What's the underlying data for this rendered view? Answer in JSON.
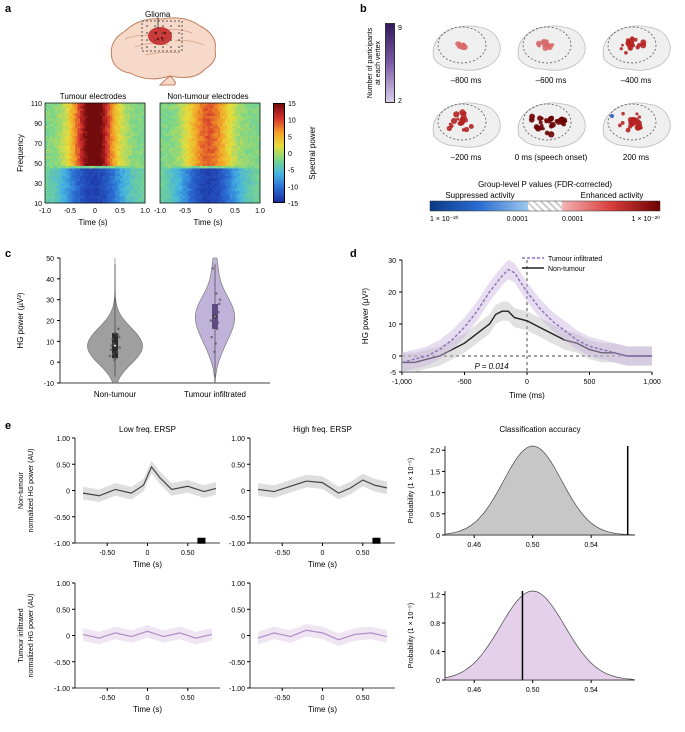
{
  "panel_a": {
    "label": "a",
    "brain_label": "Glioma",
    "left_title": "Tumour electrodes",
    "right_title": "Non-tumour electrodes",
    "x_label": "Time (s)",
    "y_label": "Frequency",
    "x_ticks": [
      "-1.0",
      "-0.5",
      "0",
      "0.5",
      "1.0"
    ],
    "y_ticks": [
      "10",
      "30",
      "50",
      "70",
      "90",
      "110"
    ],
    "cbar_label": "Spectral power",
    "cbar_ticks": [
      "-15",
      "-10",
      "-5",
      "0",
      "5",
      "10",
      "15"
    ]
  },
  "panel_b": {
    "label": "b",
    "vert_cbar_label": "Number of participants\nat each vertex",
    "vert_cbar_ticks": [
      "2",
      "9"
    ],
    "times": [
      "–800 ms",
      "–600 ms",
      "–400 ms",
      "–200 ms",
      "0 ms (speech onset)",
      "200 ms"
    ],
    "h_cbar_title": "Group-level P values (FDR-corrected)",
    "h_cbar_left": "Suppressed activity",
    "h_cbar_right": "Enhanced activity",
    "h_cbar_ticks": [
      "1 × 10⁻²⁰",
      "0.0001",
      "0.0001",
      "1 × 10⁻²⁰"
    ]
  },
  "panel_c": {
    "label": "c",
    "y_label": "HG power (µV²)",
    "x_cats": [
      "Non-tumour",
      "Tumour infiltrated"
    ],
    "y_ticks": [
      "-10",
      "0",
      "10",
      "20",
      "30",
      "40",
      "50"
    ],
    "colors": {
      "nontumour": "#8f8f8f",
      "tumour": "#b6a6d4"
    },
    "nontumour_pts": [
      [
        -0.18,
        3
      ],
      [
        -0.14,
        6
      ],
      [
        -0.05,
        9
      ],
      [
        0.03,
        2
      ],
      [
        0.1,
        13
      ],
      [
        0.12,
        16
      ],
      [
        0.17,
        7
      ],
      [
        -0.09,
        11
      ],
      [
        -0.02,
        1
      ],
      [
        0.08,
        5
      ],
      [
        0.15,
        12
      ],
      [
        -0.12,
        8
      ],
      [
        0.01,
        14
      ],
      [
        -0.06,
        4
      ]
    ],
    "tumour_pts": [
      [
        -0.12,
        12
      ],
      [
        -0.05,
        18
      ],
      [
        0.02,
        22
      ],
      [
        0.1,
        19
      ],
      [
        0.15,
        28
      ],
      [
        0.05,
        33
      ],
      [
        -0.08,
        45
      ],
      [
        -0.02,
        5
      ],
      [
        0.12,
        24
      ],
      [
        -0.15,
        20
      ],
      [
        0.07,
        16
      ],
      [
        -0.04,
        26
      ],
      [
        0.18,
        30
      ],
      [
        0.02,
        9
      ]
    ]
  },
  "panel_d": {
    "label": "d",
    "y_label": "HG power (µV²)",
    "x_label": "Time (ms)",
    "y_ticks": [
      "-5",
      "0",
      "10",
      "20",
      "30"
    ],
    "x_ticks": [
      "-1,000",
      "-500",
      "0",
      "500",
      "1,000"
    ],
    "p_text": "P = 0.014",
    "legend": {
      "tumour": "Tumour infiltrated",
      "nontumour": "Non-tumour"
    },
    "colors": {
      "tumour_line": "#8b6fb6",
      "tumour_fill": "#c7b3e0",
      "nontumour_line": "#222222",
      "nontumour_fill": "#bcbcbc"
    },
    "tumour_series": [
      [
        -1000,
        -2
      ],
      [
        -900,
        -1
      ],
      [
        -800,
        0
      ],
      [
        -700,
        2
      ],
      [
        -600,
        5
      ],
      [
        -500,
        9
      ],
      [
        -400,
        14
      ],
      [
        -300,
        20
      ],
      [
        -200,
        25
      ],
      [
        -150,
        27
      ],
      [
        -100,
        26
      ],
      [
        0,
        20
      ],
      [
        100,
        15
      ],
      [
        200,
        11
      ],
      [
        300,
        8
      ],
      [
        400,
        5
      ],
      [
        500,
        3
      ],
      [
        600,
        2
      ],
      [
        700,
        1
      ],
      [
        800,
        0
      ],
      [
        900,
        0
      ],
      [
        1000,
        0
      ]
    ],
    "nontumour_series": [
      [
        -1000,
        -2
      ],
      [
        -900,
        -2
      ],
      [
        -800,
        -1
      ],
      [
        -700,
        0
      ],
      [
        -600,
        2
      ],
      [
        -500,
        4
      ],
      [
        -400,
        7
      ],
      [
        -300,
        10
      ],
      [
        -250,
        13
      ],
      [
        -200,
        14
      ],
      [
        -150,
        14
      ],
      [
        -100,
        12
      ],
      [
        0,
        11
      ],
      [
        100,
        9
      ],
      [
        200,
        7
      ],
      [
        300,
        5
      ],
      [
        400,
        4
      ],
      [
        500,
        2
      ],
      [
        600,
        1
      ],
      [
        700,
        1
      ],
      [
        800,
        0
      ],
      [
        900,
        0
      ],
      [
        1000,
        0
      ]
    ]
  },
  "panel_e": {
    "label": "e",
    "col_titles": [
      "Low freq. ERSP",
      "High freq. ERSP"
    ],
    "row_y_labels": [
      "Non-tumour\nnormalized HG power (AU)",
      "Tumour infiltrated\nnormalized HG power (AU)"
    ],
    "x_label": "Time (s)",
    "y_ticks": [
      "-1.00",
      "-0.50",
      "0",
      "0.50",
      "1.00"
    ],
    "x_ticks": [
      "-0.50",
      "0",
      "0.50"
    ],
    "class_title": "Classification accuracy",
    "class_x_label": "Probability (1 × 10⁻⁵)",
    "class_x_ticks": [
      "0.46",
      "0.50",
      "0.54"
    ],
    "class_y_ticks_top": [
      "0",
      "0.5",
      "1.0",
      "1.5",
      "2.0"
    ],
    "class_y_ticks_bot": [
      "0",
      "0.4",
      "0.8",
      "1.2"
    ],
    "colors": {
      "nontumour_line": "#444",
      "nontumour_fill": "#bdbdbd",
      "tumour_line": "#b48bc8",
      "tumour_fill": "#e2cbe8"
    },
    "nt_low": [
      [
        -0.8,
        -0.05
      ],
      [
        -0.6,
        -0.1
      ],
      [
        -0.4,
        0.02
      ],
      [
        -0.2,
        -0.05
      ],
      [
        -0.05,
        0.1
      ],
      [
        0.05,
        0.45
      ],
      [
        0.15,
        0.25
      ],
      [
        0.3,
        0.02
      ],
      [
        0.5,
        0.08
      ],
      [
        0.7,
        -0.02
      ],
      [
        0.85,
        0.04
      ]
    ],
    "nt_high": [
      [
        -0.8,
        0.02
      ],
      [
        -0.6,
        -0.02
      ],
      [
        -0.4,
        0.08
      ],
      [
        -0.2,
        0.18
      ],
      [
        0.0,
        0.15
      ],
      [
        0.2,
        -0.05
      ],
      [
        0.35,
        0.05
      ],
      [
        0.5,
        0.2
      ],
      [
        0.65,
        0.1
      ],
      [
        0.8,
        0.05
      ]
    ],
    "ti_low": [
      [
        -0.8,
        0.02
      ],
      [
        -0.6,
        -0.05
      ],
      [
        -0.4,
        0.05
      ],
      [
        -0.2,
        -0.02
      ],
      [
        0.0,
        0.08
      ],
      [
        0.2,
        -0.02
      ],
      [
        0.4,
        0.05
      ],
      [
        0.6,
        -0.05
      ],
      [
        0.8,
        0.02
      ]
    ],
    "ti_high": [
      [
        -0.8,
        -0.05
      ],
      [
        -0.6,
        0.05
      ],
      [
        -0.4,
        -0.02
      ],
      [
        -0.2,
        0.1
      ],
      [
        0.0,
        0.05
      ],
      [
        0.2,
        -0.08
      ],
      [
        0.4,
        0.02
      ],
      [
        0.6,
        0.05
      ],
      [
        0.8,
        -0.02
      ]
    ],
    "hist_top": {
      "mu": 0.5,
      "sigma": 0.02,
      "ymax": 2.1,
      "fill": "#c2c2c2",
      "line_x": 0.565
    },
    "hist_bot": {
      "mu": 0.5,
      "sigma": 0.022,
      "ymax": 1.25,
      "fill": "#e2cbe8",
      "line_x": 0.493
    }
  }
}
